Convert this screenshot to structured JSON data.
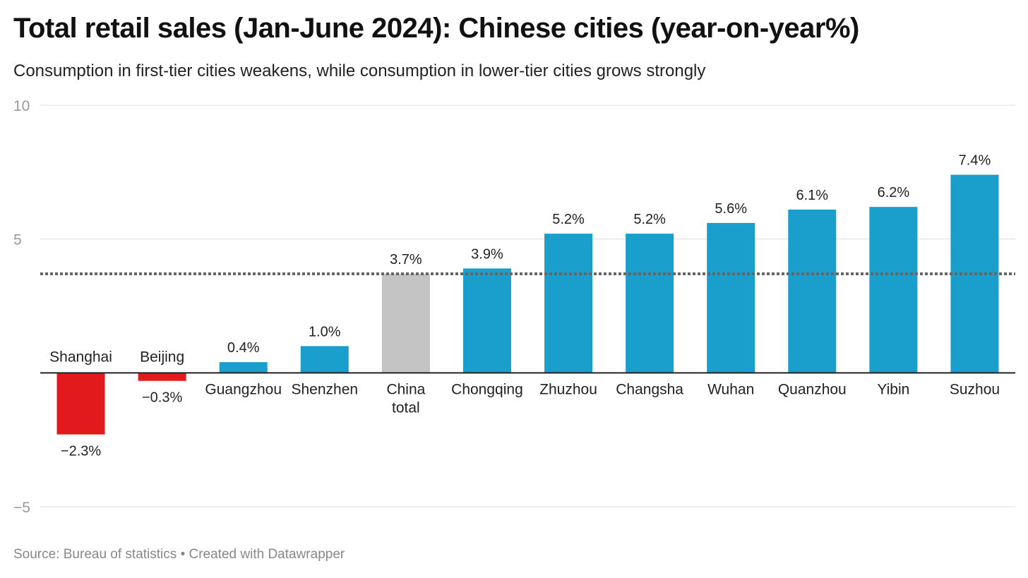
{
  "header": {
    "title": "Total retail sales (Jan-June 2024): Chinese cities (year-on-year%)",
    "subtitle": "Consumption in first-tier cities weakens, while consumption in lower-tier cities grows strongly"
  },
  "footer": {
    "source": "Source: Bureau of statistics",
    "separator": "•",
    "credit": "Created with Datawrapper"
  },
  "colors": {
    "negative": "#e31a1c",
    "positive": "#1a9fcc",
    "total": "#c4c4c4",
    "reference_line": "#666666",
    "grid": "#dddddd",
    "axis": "#222222"
  },
  "chart_data": {
    "type": "bar",
    "title": "Total retail sales (Jan-June 2024): Chinese cities (year-on-year%)",
    "subtitle": "Consumption in first-tier cities weakens, while consumption in lower-tier cities grows strongly",
    "categories": [
      "Shanghai",
      "Beijing",
      "Guangzhou",
      "Shenzhen",
      "China total",
      "Chongqing",
      "Zhuzhou",
      "Changsha",
      "Wuhan",
      "Quanzhou",
      "Yibin",
      "Suzhou"
    ],
    "values": [
      -2.3,
      -0.3,
      0.4,
      1.0,
      3.7,
      3.9,
      5.2,
      5.2,
      5.6,
      6.1,
      6.2,
      7.4
    ],
    "value_labels": [
      "−2.3%",
      "−0.3%",
      "0.4%",
      "1.0%",
      "3.7%",
      "3.9%",
      "5.2%",
      "5.2%",
      "5.6%",
      "6.1%",
      "6.2%",
      "7.4%"
    ],
    "bar_colors": [
      "negative",
      "negative",
      "positive",
      "positive",
      "total",
      "positive",
      "positive",
      "positive",
      "positive",
      "positive",
      "positive",
      "positive"
    ],
    "reference_line": {
      "value": 3.7,
      "style": "dotted"
    },
    "ylim": [
      -5,
      10
    ],
    "yticks": [
      -5,
      5,
      10
    ],
    "ytick_labels": [
      "−5",
      "5",
      "10"
    ],
    "xlabel": "",
    "ylabel": "",
    "grid": true,
    "legend": "none"
  }
}
